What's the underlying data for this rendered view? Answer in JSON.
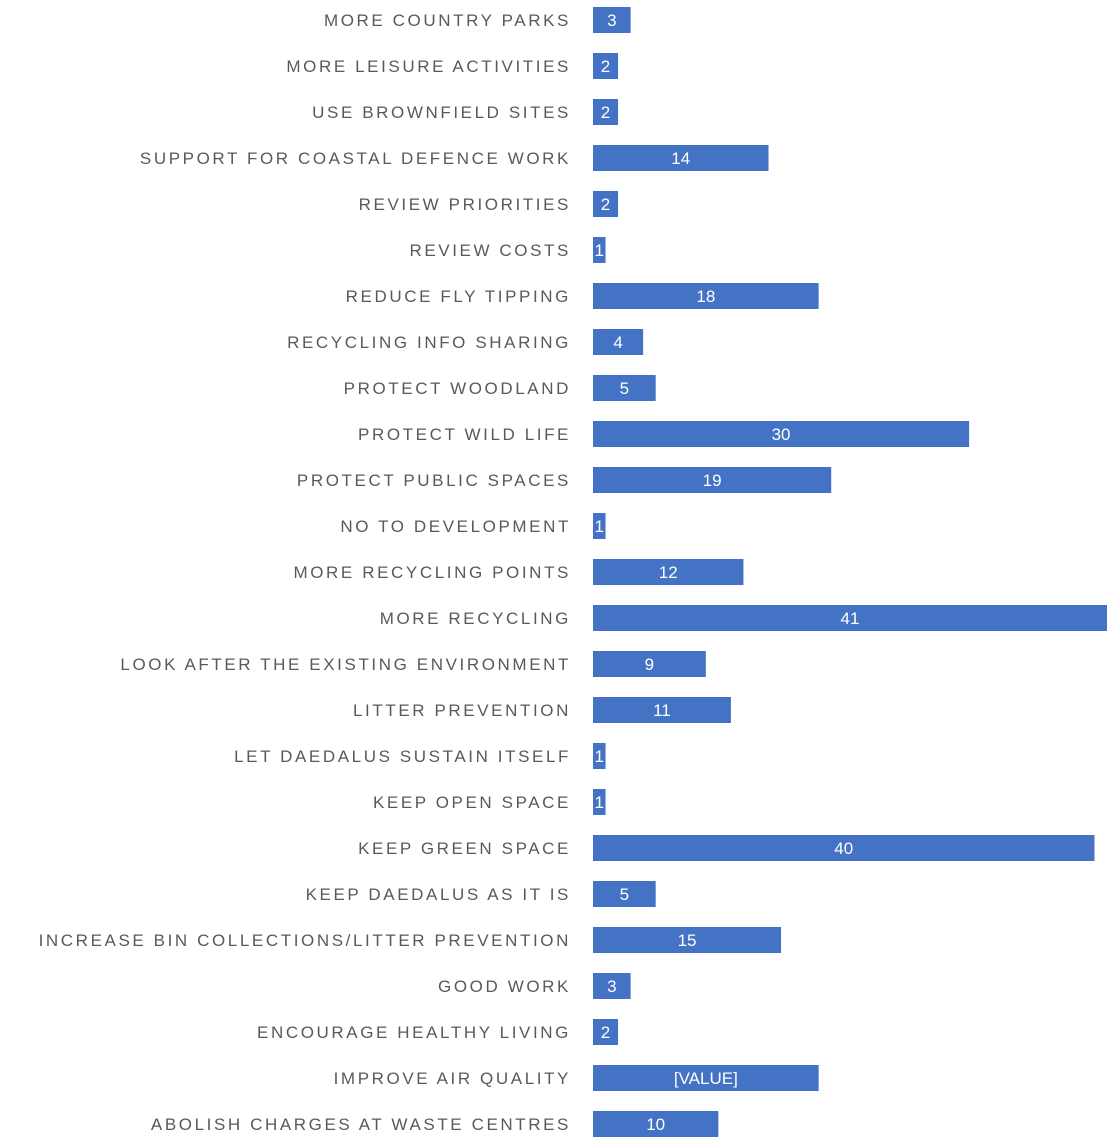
{
  "chart_data": {
    "type": "bar",
    "orientation": "horizontal",
    "title": "",
    "xlabel": "",
    "ylabel": "",
    "categories": [
      "MORE COUNTRY PARKS",
      "MORE LEISURE ACTIVITIES",
      "USE BROWNFIELD SITES",
      "SUPPORT FOR COASTAL DEFENCE WORK",
      "REVIEW PRIORITIES",
      "REVIEW COSTS",
      "REDUCE FLY TIPPING",
      "RECYCLING INFO SHARING",
      "PROTECT WOODLAND",
      "PROTECT WILD LIFE",
      "PROTECT PUBLIC SPACES",
      "NO TO DEVELOPMENT",
      "MORE RECYCLING POINTS",
      "MORE RECYCLING",
      "LOOK AFTER THE EXISTING ENVIRONMENT",
      "LITTER PREVENTION",
      "LET DAEDALUS SUSTAIN ITSELF",
      "KEEP OPEN SPACE",
      "KEEP GREEN SPACE",
      "KEEP DAEDALUS AS IT IS",
      "INCREASE BIN COLLECTIONS/LITTER PREVENTION",
      "GOOD WORK",
      "ENCOURAGE HEALTHY LIVING",
      "IMPROVE AIR QUALITY",
      "ABOLISH CHARGES AT WASTE CENTRES"
    ],
    "values": [
      3,
      2,
      2,
      14,
      2,
      1,
      18,
      4,
      5,
      30,
      19,
      1,
      12,
      41,
      9,
      11,
      1,
      1,
      40,
      5,
      15,
      3,
      2,
      18,
      10
    ],
    "data_labels": [
      "3",
      "2",
      "2",
      "14",
      "2",
      "1",
      "18",
      "4",
      "5",
      "30",
      "19",
      "1",
      "12",
      "41",
      "9",
      "11",
      "1",
      "1",
      "40",
      "5",
      "15",
      "3",
      "2",
      "[VALUE]",
      "10"
    ],
    "xlim": [
      0,
      41
    ],
    "bar_color": "#4472C4",
    "label_color": "#595959",
    "data_label_color": "#FFFFFF",
    "grid": false,
    "legend": "none"
  }
}
